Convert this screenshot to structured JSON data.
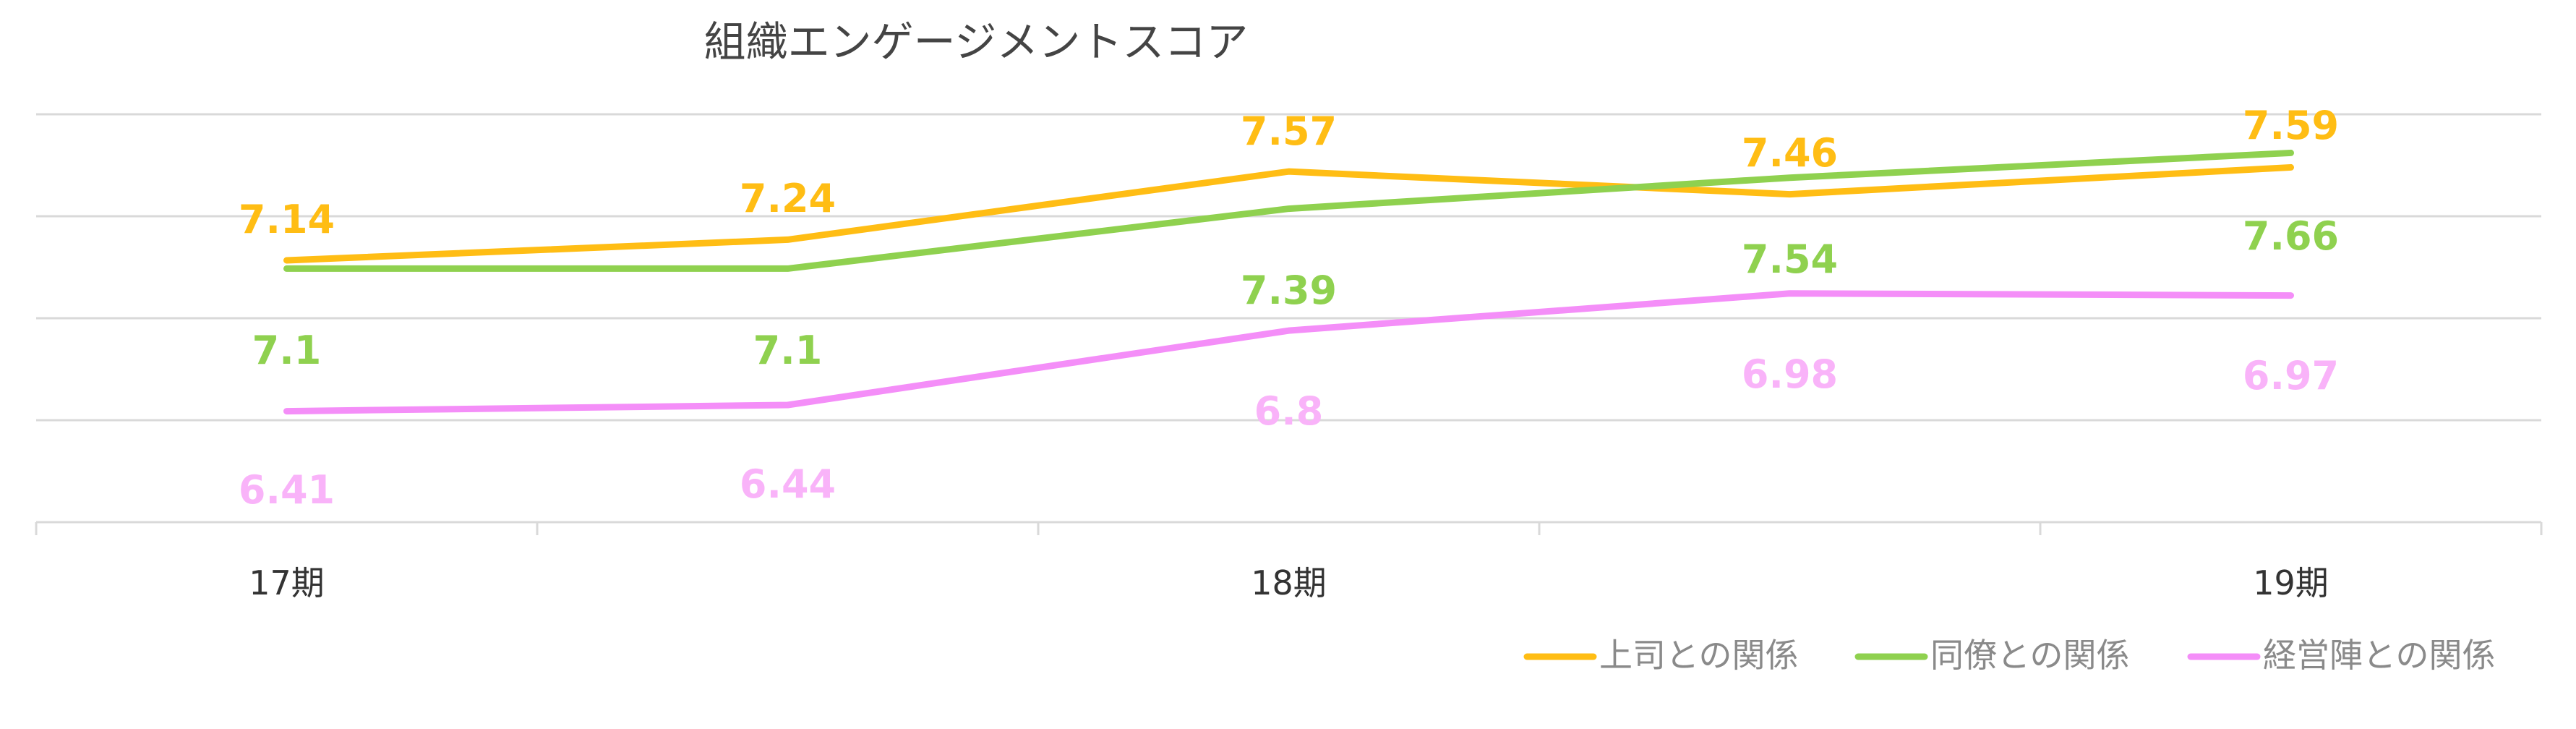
{
  "chart_data": {
    "type": "line",
    "title": "組織エンゲージメントスコア",
    "categories": [
      "17期",
      "",
      "18期",
      "",
      "19期"
    ],
    "series": [
      {
        "name": "上司との関係",
        "color": "#FFBD14",
        "values": [
          7.14,
          7.24,
          7.57,
          7.46,
          7.59
        ]
      },
      {
        "name": "同僚との関係",
        "color": "#8FD14F",
        "values": [
          7.1,
          7.1,
          7.39,
          7.54,
          7.66
        ]
      },
      {
        "name": "経営陣との関係",
        "color": "#F48EF8",
        "values": [
          6.41,
          6.44,
          6.8,
          6.98,
          6.97
        ]
      }
    ],
    "data_labels": [
      [
        "7.14",
        "7.24",
        "7.57",
        "7.46",
        "7.59"
      ],
      [
        "7.1",
        "7.1",
        "7.39",
        "7.54",
        "7.66"
      ],
      [
        "6.41",
        "6.44",
        "6.8",
        "6.98",
        "6.97"
      ]
    ],
    "ylim": [
      6.0,
      8.0
    ],
    "grid": true,
    "legend_position": "bottom-right",
    "label_color_green": "#8FD14F",
    "label_color_pink": "#F9B3F9"
  }
}
